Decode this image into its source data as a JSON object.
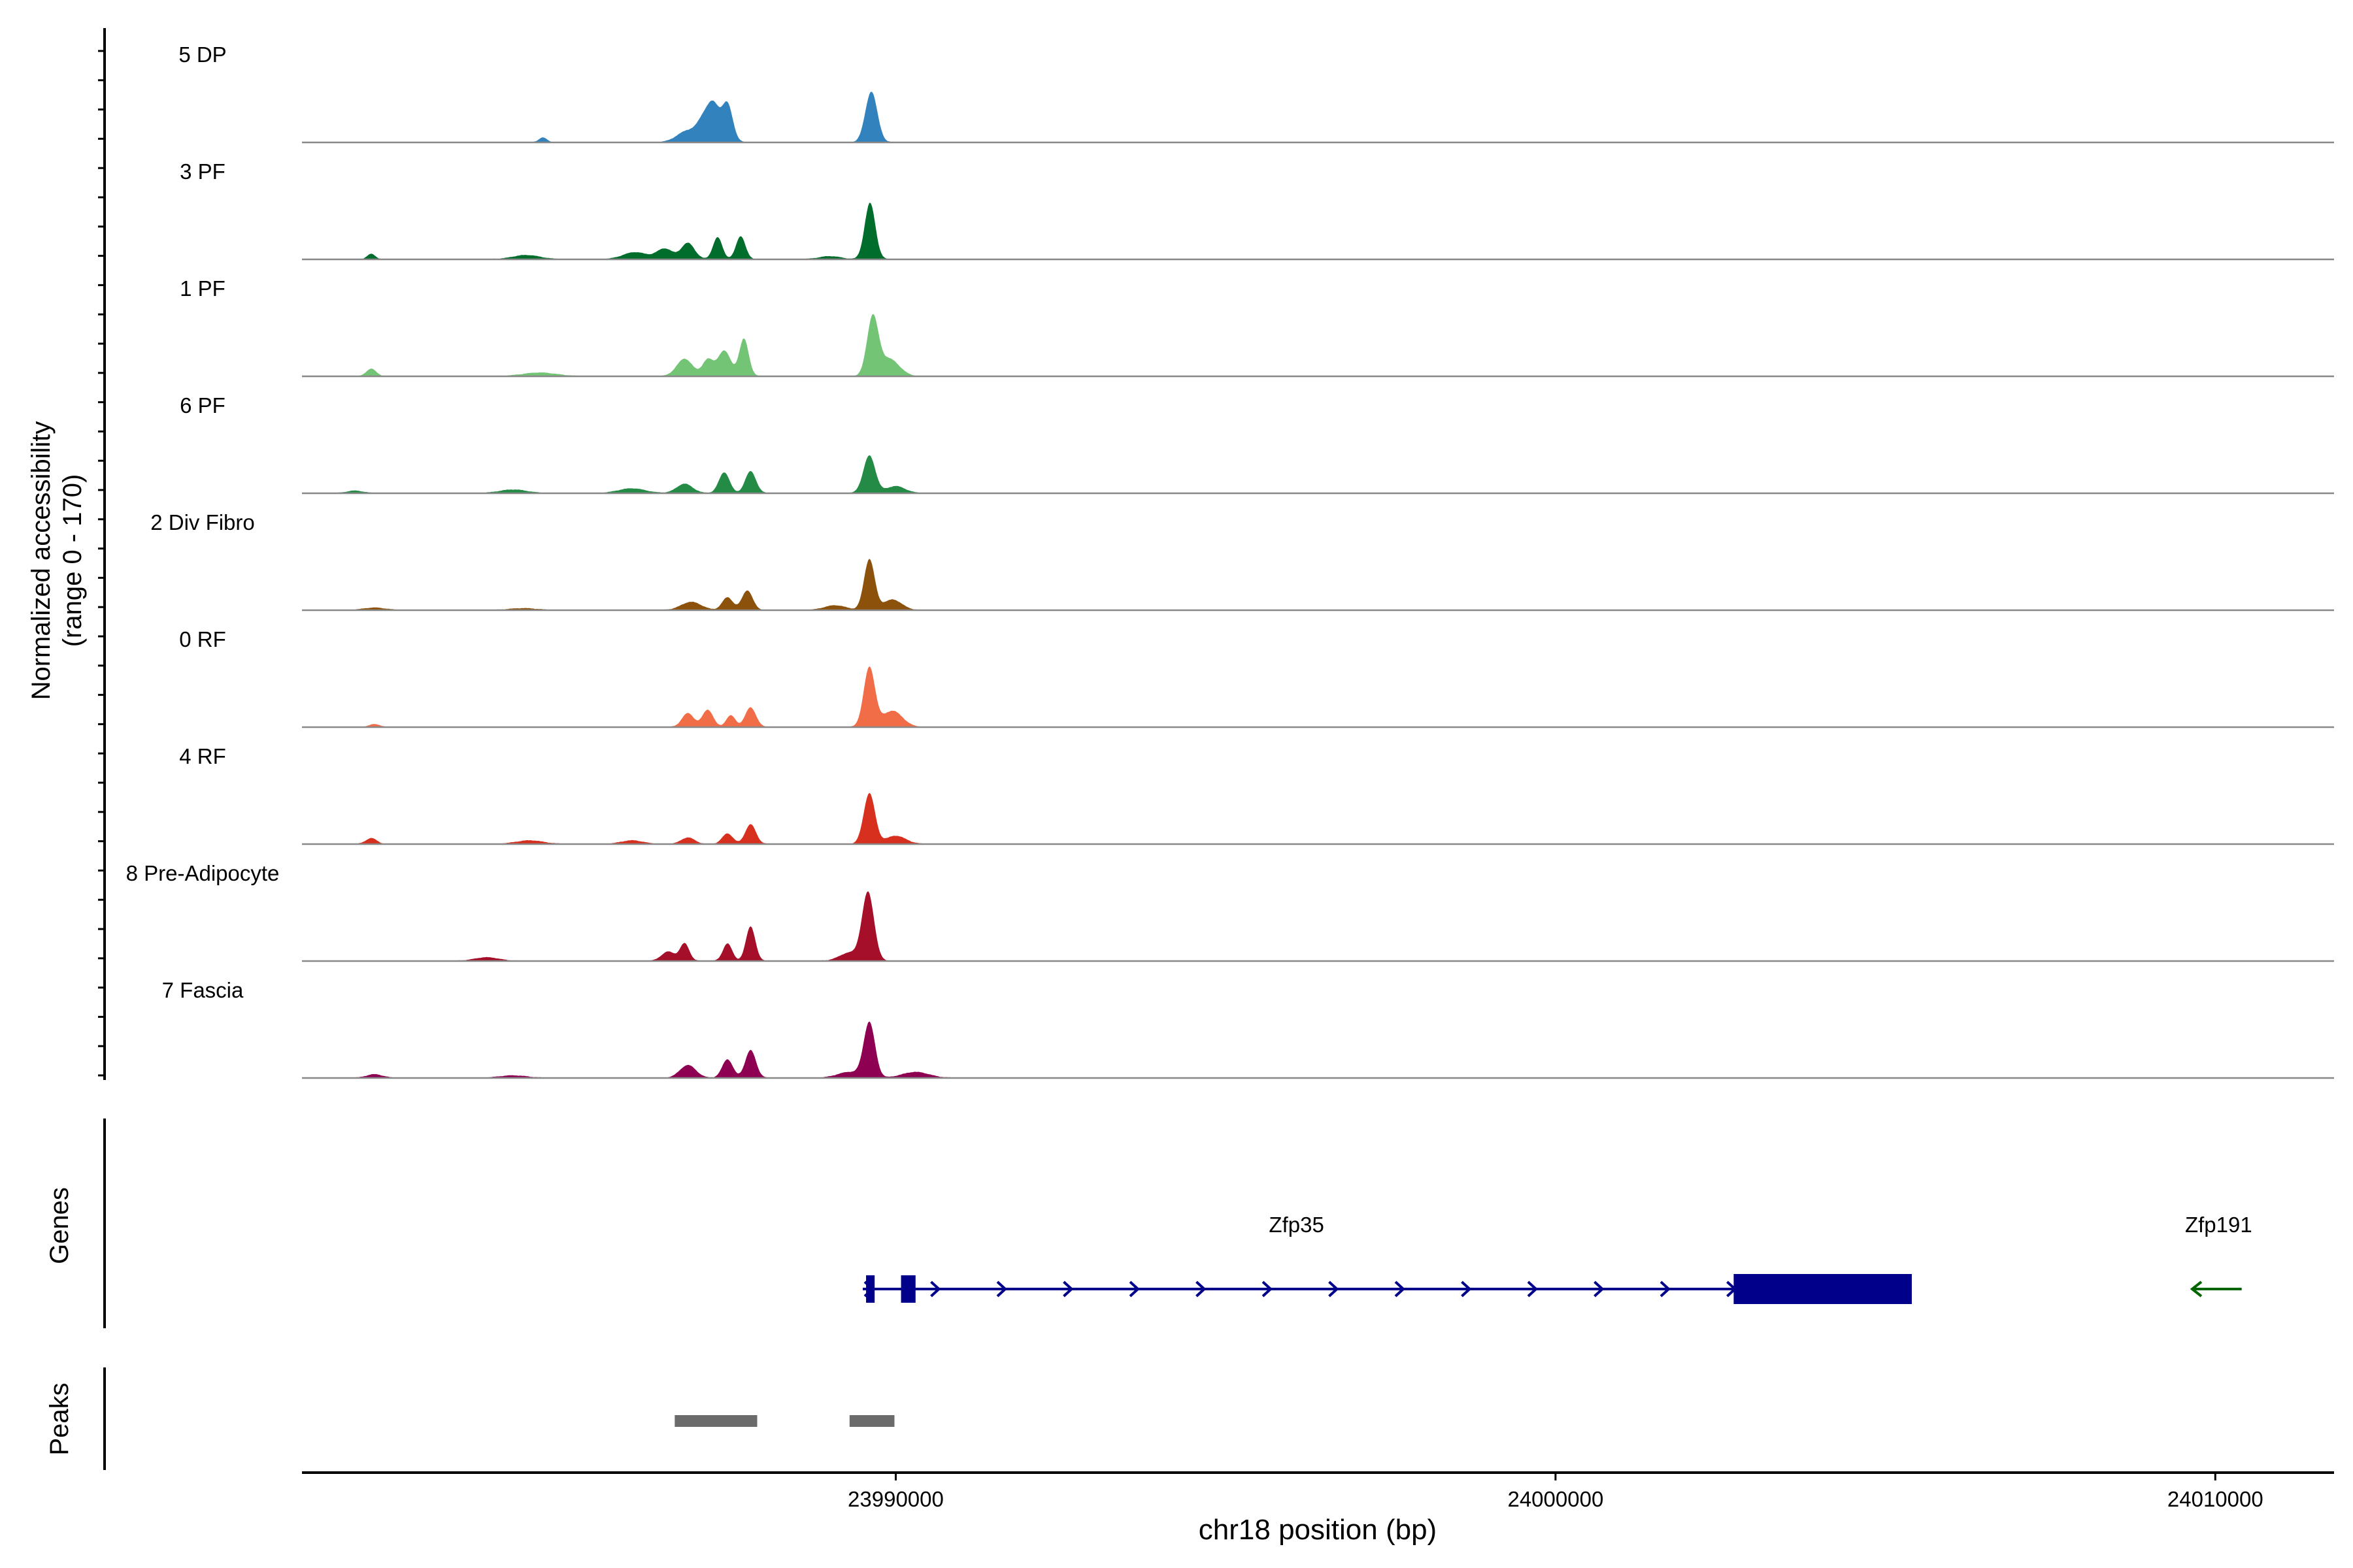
{
  "chart_data": {
    "type": "area",
    "title": "",
    "ylabel_line1": "Normalized accessibility",
    "ylabel_line2": "(range 0 - 170)",
    "xlabel": "chr18 position (bp)",
    "xlim": [
      23981000,
      24011800
    ],
    "ylim": [
      0,
      170
    ],
    "x_ticks": [
      {
        "value": 23990000,
        "label": "23990000"
      },
      {
        "value": 24000000,
        "label": "24000000"
      },
      {
        "value": 24010000,
        "label": "24010000"
      }
    ],
    "series": [
      {
        "name": "5 DP",
        "color": "#3182BD",
        "scale": 1.0,
        "peaks": [
          [
            23984650,
            8,
            60
          ],
          [
            23986850,
            20,
            160
          ],
          [
            23987100,
            36,
            100
          ],
          [
            23987250,
            55,
            90
          ],
          [
            23987450,
            65,
            80
          ],
          [
            23989630,
            88,
            90
          ]
        ]
      },
      {
        "name": "3 PF",
        "color": "#006D2C",
        "scale": 1.0,
        "peaks": [
          [
            23982050,
            9,
            60
          ],
          [
            23984400,
            7,
            200
          ],
          [
            23986050,
            12,
            180
          ],
          [
            23986500,
            18,
            120
          ],
          [
            23986850,
            28,
            100
          ],
          [
            23987300,
            38,
            70
          ],
          [
            23987650,
            40,
            70
          ],
          [
            23989000,
            5,
            160
          ],
          [
            23989610,
            98,
            80
          ]
        ]
      },
      {
        "name": "1 PF",
        "color": "#74C476",
        "scale": 1.0,
        "peaks": [
          [
            23982050,
            13,
            70
          ],
          [
            23984600,
            6,
            250
          ],
          [
            23986800,
            30,
            120
          ],
          [
            23987150,
            28,
            80
          ],
          [
            23987400,
            44,
            100
          ],
          [
            23987700,
            65,
            70
          ],
          [
            23989650,
            100,
            85
          ],
          [
            23989900,
            30,
            150
          ]
        ]
      },
      {
        "name": "6 PF",
        "color": "#238B45",
        "scale": 1.0,
        "peaks": [
          [
            23981800,
            4,
            120
          ],
          [
            23984200,
            6,
            200
          ],
          [
            23986000,
            8,
            200
          ],
          [
            23986800,
            16,
            120
          ],
          [
            23987400,
            36,
            80
          ],
          [
            23987800,
            38,
            80
          ],
          [
            23989600,
            65,
            90
          ],
          [
            23990000,
            12,
            140
          ]
        ]
      },
      {
        "name": "2 Div Fibro",
        "color": "#8C510A",
        "scale": 1.0,
        "peaks": [
          [
            23982100,
            4,
            160
          ],
          [
            23984350,
            3,
            200
          ],
          [
            23986900,
            14,
            150
          ],
          [
            23987450,
            22,
            80
          ],
          [
            23987750,
            34,
            80
          ],
          [
            23989080,
            8,
            160
          ],
          [
            23989600,
            88,
            80
          ],
          [
            23989950,
            18,
            140
          ]
        ]
      },
      {
        "name": "0 RF",
        "color": "#F16D48",
        "scale": 1.0,
        "peaks": [
          [
            23982100,
            5,
            70
          ],
          [
            23986850,
            24,
            90
          ],
          [
            23987150,
            30,
            80
          ],
          [
            23987500,
            20,
            70
          ],
          [
            23987800,
            34,
            80
          ],
          [
            23989600,
            103,
            85
          ],
          [
            23989950,
            28,
            150
          ]
        ]
      },
      {
        "name": "4 RF",
        "color": "#D7301F",
        "scale": 1.0,
        "peaks": [
          [
            23982050,
            10,
            80
          ],
          [
            23984450,
            6,
            200
          ],
          [
            23986000,
            6,
            160
          ],
          [
            23986850,
            11,
            100
          ],
          [
            23987450,
            18,
            80
          ],
          [
            23987800,
            34,
            80
          ],
          [
            23989600,
            88,
            85
          ],
          [
            23990000,
            14,
            150
          ]
        ]
      },
      {
        "name": "8 Pre-Adipocyte",
        "color": "#A50F29",
        "scale": 1.0,
        "peaks": [
          [
            23983800,
            6,
            180
          ],
          [
            23986550,
            16,
            100
          ],
          [
            23986800,
            30,
            70
          ],
          [
            23987450,
            30,
            70
          ],
          [
            23987800,
            60,
            70
          ],
          [
            23989300,
            14,
            150
          ],
          [
            23989580,
            118,
            90
          ]
        ]
      },
      {
        "name": "7 Fascia",
        "color": "#8E0152",
        "scale": 1.0,
        "peaks": [
          [
            23982100,
            6,
            120
          ],
          [
            23984200,
            4,
            200
          ],
          [
            23986850,
            22,
            120
          ],
          [
            23987450,
            32,
            80
          ],
          [
            23987800,
            48,
            80
          ],
          [
            23989300,
            10,
            180
          ],
          [
            23989600,
            95,
            85
          ],
          [
            23990300,
            10,
            200
          ]
        ]
      }
    ],
    "tracks": [
      {
        "label": "Genes"
      },
      {
        "label": "Peaks"
      }
    ],
    "genes": [
      {
        "name": "Zfp35",
        "strand": "+",
        "start": 23989500,
        "end": 24005300,
        "color": "#00008B",
        "exons": [
          [
            23989550,
            23989680
          ],
          [
            23990080,
            23990300
          ]
        ],
        "utr_block": [
          24002700,
          24005400
        ]
      },
      {
        "name": "Zfp191",
        "strand": "-",
        "start": 24009650,
        "end": 24010400,
        "color": "#006400",
        "exons": []
      }
    ],
    "peaks_regions": [
      [
        23986650,
        23987900
      ],
      [
        23989300,
        23989980
      ]
    ]
  }
}
